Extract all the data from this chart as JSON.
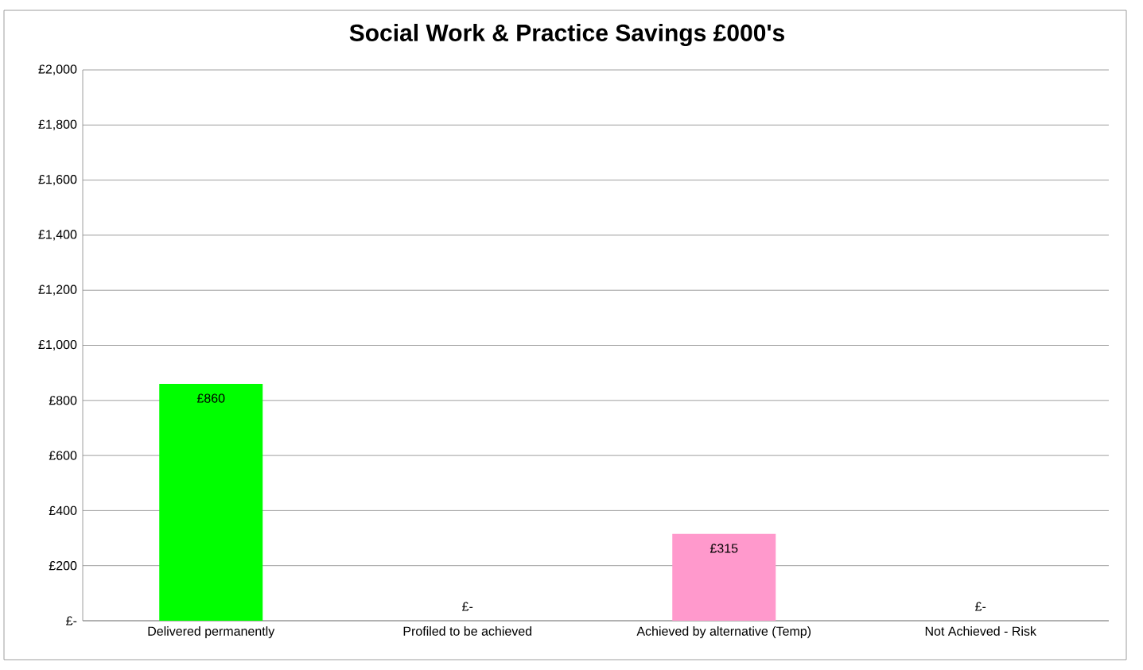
{
  "chart_data": {
    "type": "bar",
    "title": "Social Work & Practice Savings £000's",
    "categories": [
      "Delivered permanently",
      "Profiled to be achieved",
      "Achieved by alternative (Temp)",
      "Not Achieved - Risk"
    ],
    "values": [
      860,
      0,
      315,
      0
    ],
    "colors": [
      "#00ff00",
      "#00ff00",
      "#ff99cc",
      "#ff99cc"
    ],
    "value_labels": [
      "£860",
      "£-",
      "£315",
      "£-"
    ],
    "ylim": [
      0,
      2000
    ],
    "yticks": [
      {
        "value": 0,
        "label": "£-"
      },
      {
        "value": 200,
        "label": "£200"
      },
      {
        "value": 400,
        "label": "£400"
      },
      {
        "value": 600,
        "label": "£600"
      },
      {
        "value": 800,
        "label": "£800"
      },
      {
        "value": 1000,
        "label": "£1,000"
      },
      {
        "value": 1200,
        "label": "£1,200"
      },
      {
        "value": 1400,
        "label": "£1,400"
      },
      {
        "value": 1600,
        "label": "£1,600"
      },
      {
        "value": 1800,
        "label": "£1,800"
      },
      {
        "value": 2000,
        "label": "£2,000"
      }
    ],
    "grid": "y"
  }
}
